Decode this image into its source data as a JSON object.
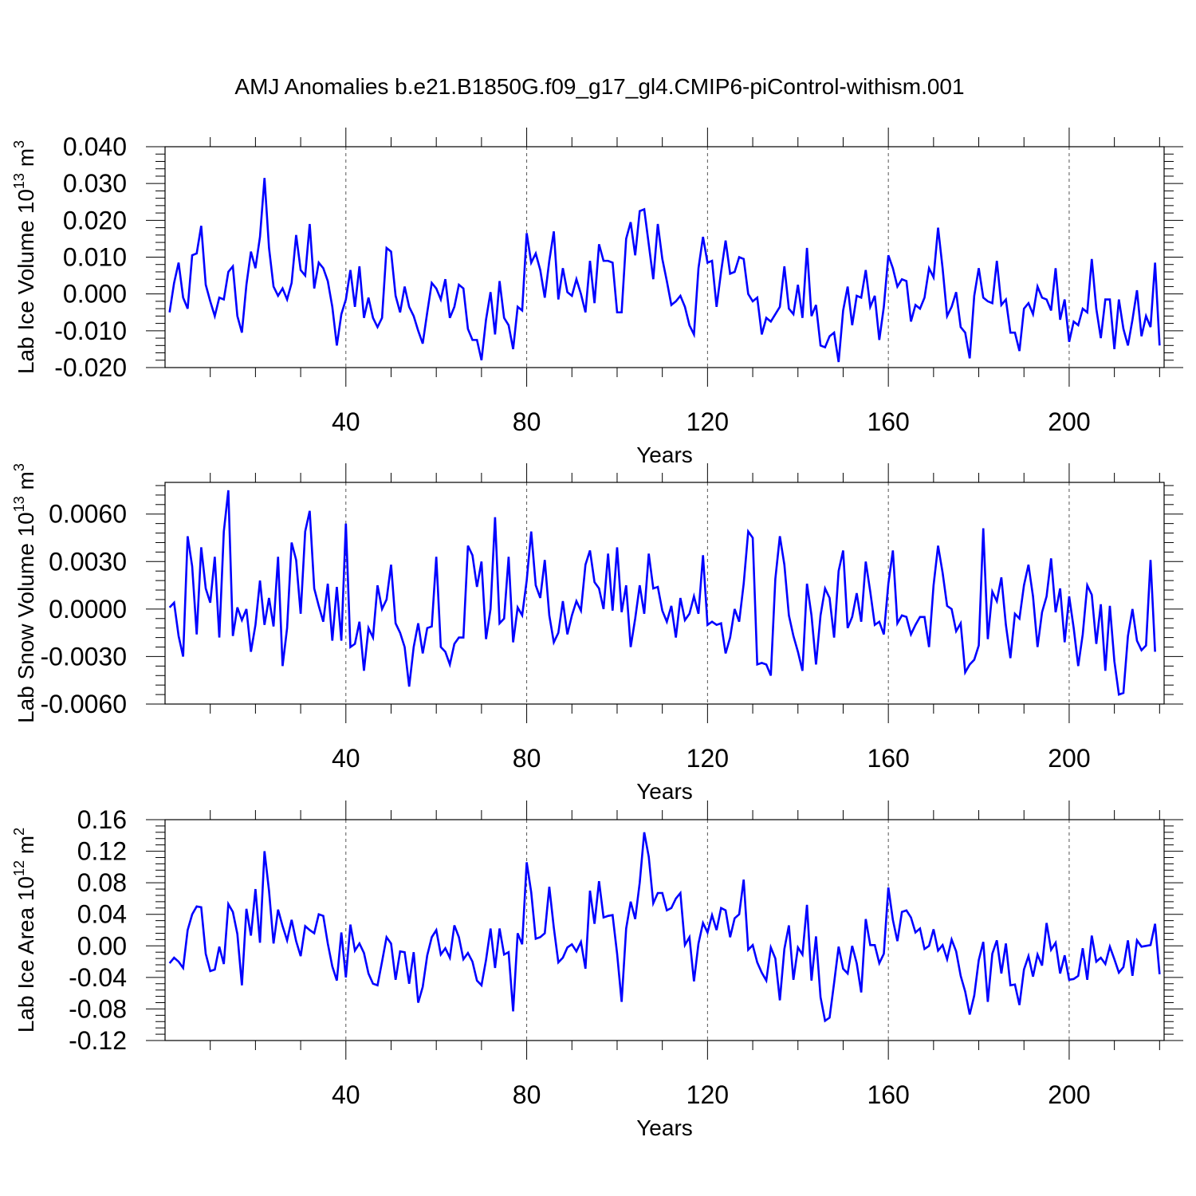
{
  "title": "AMJ Anomalies b.e21.B1850G.f09_g17_gl4.CMIP6-piControl-withism.001",
  "line_color": "#0000ff",
  "chart_data": [
    {
      "type": "line",
      "ylabel_main": "Lab Ice Volume 10",
      "ylabel_exp": "13",
      "ylabel_unit": " m",
      "ylabel_unit_exp": "3",
      "xlabel": "Years",
      "xlim": [
        0,
        221
      ],
      "ylim": [
        -0.02,
        0.04
      ],
      "yticks": [
        -0.02,
        -0.01,
        0.0,
        0.01,
        0.02,
        0.03,
        0.04
      ],
      "ytick_labels": [
        "-0.020",
        "-0.010",
        "0.000",
        "0.010",
        "0.020",
        "0.030",
        "0.040"
      ],
      "xticks": [
        40,
        80,
        120,
        160,
        200
      ],
      "xtick_labels": [
        "40",
        "80",
        "120",
        "160",
        "200"
      ],
      "grid": "dashed vertical at x ticks",
      "series": [
        {
          "name": "Lab Ice Volume",
          "values": [
            -0.005,
            0.003,
            0.0085,
            -0.001,
            -0.004,
            0.0105,
            0.011,
            0.0185,
            0.0025,
            -0.002,
            -0.006,
            -0.001,
            -0.0015,
            0.006,
            0.0075,
            -0.006,
            -0.0105,
            0.0025,
            0.0115,
            0.007,
            0.0155,
            0.0315,
            0.0125,
            0.002,
            -0.0005,
            0.0015,
            -0.0015,
            0.003,
            0.016,
            0.0065,
            0.005,
            0.019,
            0.0015,
            0.0085,
            0.007,
            0.0035,
            -0.0035,
            -0.014,
            -0.0055,
            -0.0015,
            0.0065,
            -0.0035,
            0.0075,
            -0.0065,
            -0.001,
            -0.0065,
            -0.009,
            -0.0065,
            0.0125,
            0.0115,
            -0.0005,
            -0.005,
            0.002,
            -0.0035,
            -0.006,
            -0.01,
            -0.0135,
            -0.005,
            0.003,
            0.0015,
            -0.0015,
            0.004,
            -0.0065,
            -0.0035,
            0.0025,
            0.0015,
            -0.0095,
            -0.0125,
            -0.0125,
            -0.018,
            -0.007,
            0.0005,
            -0.011,
            0.0035,
            -0.0065,
            -0.0085,
            -0.015,
            -0.0035,
            -0.0045,
            0.0165,
            0.0085,
            0.011,
            0.0065,
            -0.001,
            0.009,
            0.017,
            -0.0015,
            0.007,
            0.0005,
            -0.0005,
            0.004,
            0.0,
            -0.005,
            0.009,
            -0.0025,
            0.0135,
            0.009,
            0.009,
            0.0085,
            -0.005,
            -0.005,
            0.015,
            0.0195,
            0.0105,
            0.0225,
            0.023,
            0.0135,
            0.004,
            0.019,
            0.0095,
            0.0035,
            -0.003,
            -0.002,
            -0.0005,
            -0.0035,
            -0.0085,
            -0.011,
            0.007,
            0.0155,
            0.0085,
            0.009,
            -0.0035,
            0.006,
            0.0145,
            0.0055,
            0.006,
            0.01,
            0.0095,
            0.0,
            -0.002,
            -0.001,
            -0.011,
            -0.0065,
            -0.0075,
            -0.0055,
            -0.0035,
            0.0075,
            -0.004,
            -0.0055,
            0.0025,
            -0.0065,
            0.0125,
            -0.006,
            -0.003,
            -0.014,
            -0.0145,
            -0.0115,
            -0.0105,
            -0.0185,
            -0.0045,
            0.002,
            -0.0085,
            -0.0005,
            -0.001,
            0.0065,
            -0.0035,
            -0.0005,
            -0.0125,
            -0.0035,
            0.0105,
            0.007,
            0.002,
            0.004,
            0.0035,
            -0.0075,
            -0.003,
            -0.004,
            -0.001,
            0.007,
            0.0045,
            0.018,
            0.007,
            -0.006,
            -0.0035,
            0.0005,
            -0.009,
            -0.0105,
            -0.0175,
            -0.0005,
            0.007,
            -0.001,
            -0.002,
            -0.0025,
            0.009,
            -0.003,
            -0.0015,
            -0.0105,
            -0.0105,
            -0.0155,
            -0.004,
            -0.0025,
            -0.0055,
            0.002,
            -0.001,
            -0.0015,
            -0.0045,
            0.007,
            -0.007,
            -0.0015,
            -0.013,
            -0.0075,
            -0.0085,
            -0.004,
            -0.005,
            0.0095,
            -0.004,
            -0.012,
            -0.0015,
            -0.0015,
            -0.015,
            -0.0015,
            -0.0095,
            -0.014,
            -0.007,
            0.001,
            -0.0115,
            -0.006,
            -0.009,
            0.0085,
            -0.014
          ]
        }
      ]
    },
    {
      "type": "line",
      "ylabel_main": "Lab Snow Volume 10",
      "ylabel_exp": "13",
      "ylabel_unit": " m",
      "ylabel_unit_exp": "3",
      "xlabel": "Years",
      "xlim": [
        0,
        221
      ],
      "ylim": [
        -0.006,
        0.008
      ],
      "yticks": [
        -0.006,
        -0.003,
        0.0,
        0.003,
        0.006
      ],
      "ytick_labels": [
        "-0.0060",
        "-0.0030",
        "0.0000",
        "0.0030",
        "0.0060"
      ],
      "xticks": [
        40,
        80,
        120,
        160,
        200
      ],
      "xtick_labels": [
        "40",
        "80",
        "120",
        "160",
        "200"
      ],
      "grid": "dashed vertical at x ticks",
      "series": [
        {
          "name": "Lab Snow Volume",
          "values": [
            0.0001,
            0.0004,
            -0.0017,
            -0.003,
            0.0046,
            0.0027,
            -0.0016,
            0.0039,
            0.0013,
            0.0004,
            0.0033,
            -0.0018,
            0.0049,
            0.0075,
            -0.0017,
            0.0001,
            -0.0007,
            0.0,
            -0.0027,
            -0.001,
            0.0018,
            -0.001,
            0.0007,
            -0.0011,
            0.0033,
            -0.0036,
            -0.0012,
            0.0042,
            0.0031,
            -0.0003,
            0.0049,
            0.0062,
            0.0013,
            0.0002,
            -0.0008,
            0.0016,
            -0.002,
            0.0014,
            -0.002,
            0.0054,
            -0.0024,
            -0.0022,
            -0.0008,
            -0.0039,
            -0.0012,
            -0.0018,
            0.0015,
            0.0,
            0.0006,
            0.0028,
            -0.0009,
            -0.0015,
            -0.0024,
            -0.0049,
            -0.0024,
            -0.0009,
            -0.0028,
            -0.0012,
            -0.0011,
            0.0033,
            -0.0024,
            -0.0027,
            -0.0035,
            -0.0022,
            -0.0018,
            -0.0018,
            0.004,
            0.0034,
            0.0014,
            0.003,
            -0.0019,
            0.0,
            0.0058,
            -0.0009,
            -0.0006,
            0.0033,
            -0.0021,
            0.0001,
            -0.0004,
            0.0018,
            0.0049,
            0.0015,
            0.0007,
            0.0031,
            -0.0004,
            -0.0021,
            -0.0015,
            0.0005,
            -0.0016,
            -0.0004,
            0.0005,
            -0.0001,
            0.0028,
            0.0037,
            0.0017,
            0.0013,
            0.0,
            0.0035,
            -0.0001,
            0.0039,
            -0.0002,
            0.0015,
            -0.0024,
            -0.0006,
            0.0015,
            -0.0003,
            0.0035,
            0.0013,
            0.0014,
            -0.0001,
            -0.0008,
            0.0002,
            -0.0018,
            0.0007,
            -0.0007,
            -0.0003,
            0.0008,
            -0.0003,
            0.0034,
            -0.001,
            -0.0008,
            -0.001,
            -0.0009,
            -0.0028,
            -0.0018,
            0.0,
            -0.0008,
            0.0016,
            0.0049,
            0.0045,
            -0.0035,
            -0.0034,
            -0.0035,
            -0.0042,
            0.0019,
            0.0046,
            0.0028,
            -0.0004,
            -0.0017,
            -0.0027,
            -0.0039,
            0.0016,
            -0.0004,
            -0.0035,
            -0.0004,
            0.0013,
            0.0007,
            -0.0018,
            0.0024,
            0.0037,
            -0.0012,
            -0.0005,
            0.001,
            -0.0008,
            0.003,
            0.0011,
            -0.001,
            -0.0008,
            -0.0016,
            0.0016,
            0.0037,
            -0.0009,
            -0.0004,
            -0.0005,
            -0.0016,
            -0.001,
            -0.0005,
            -0.0005,
            -0.0024,
            0.0015,
            0.004,
            0.0023,
            0.0002,
            0.0,
            -0.0014,
            -0.0009,
            -0.004,
            -0.0035,
            -0.0032,
            -0.0023,
            0.0051,
            -0.0019,
            0.0011,
            0.0005,
            0.002,
            -0.001,
            -0.0031,
            -0.0003,
            -0.0006,
            0.0015,
            0.0028,
            0.0008,
            -0.0024,
            -0.0002,
            0.0008,
            0.0032,
            -0.0002,
            0.0013,
            -0.0021,
            0.0008,
            -0.0012,
            -0.0036,
            -0.0016,
            0.0015,
            0.0009,
            -0.0022,
            0.0003,
            -0.0039,
            0.0002,
            -0.0033,
            -0.0054,
            -0.0053,
            -0.0017,
            0.0,
            -0.002,
            -0.0026,
            -0.0023,
            0.0031,
            -0.0027
          ]
        }
      ]
    },
    {
      "type": "line",
      "ylabel_main": "Lab Ice Area 10",
      "ylabel_exp": "12",
      "ylabel_unit": " m",
      "ylabel_unit_exp": "2",
      "xlabel": "Years",
      "xlim": [
        0,
        221
      ],
      "ylim": [
        -0.12,
        0.16
      ],
      "yticks": [
        -0.12,
        -0.08,
        -0.04,
        0.0,
        0.04,
        0.08,
        0.12,
        0.16
      ],
      "ytick_labels": [
        "-0.12",
        "-0.08",
        "-0.04",
        "0.00",
        "0.04",
        "0.08",
        "0.12",
        "0.16"
      ],
      "xticks": [
        40,
        80,
        120,
        160,
        200
      ],
      "xtick_labels": [
        "40",
        "80",
        "120",
        "160",
        "200"
      ],
      "grid": "dashed vertical at x ticks",
      "series": [
        {
          "name": "Lab Ice Area",
          "values": [
            -0.022,
            -0.015,
            -0.02,
            -0.028,
            0.02,
            0.04,
            0.05,
            0.049,
            -0.01,
            -0.032,
            -0.03,
            -0.001,
            -0.023,
            0.053,
            0.043,
            0.015,
            -0.05,
            0.047,
            0.013,
            0.072,
            0.004,
            0.12,
            0.07,
            0.003,
            0.046,
            0.025,
            0.007,
            0.033,
            0.006,
            -0.013,
            0.025,
            0.02,
            0.016,
            0.04,
            0.038,
            0.003,
            -0.026,
            -0.044,
            0.017,
            -0.04,
            0.027,
            -0.006,
            0.003,
            -0.009,
            -0.035,
            -0.048,
            -0.05,
            -0.02,
            0.011,
            0.003,
            -0.043,
            -0.007,
            -0.008,
            -0.048,
            -0.008,
            -0.072,
            -0.052,
            -0.012,
            0.011,
            0.02,
            -0.011,
            -0.003,
            -0.015,
            0.026,
            0.011,
            -0.017,
            -0.009,
            -0.02,
            -0.044,
            -0.05,
            -0.018,
            0.022,
            -0.028,
            0.022,
            -0.011,
            -0.008,
            -0.083,
            0.016,
            0.002,
            0.106,
            0.068,
            0.009,
            0.011,
            0.016,
            0.075,
            0.023,
            -0.021,
            -0.015,
            -0.002,
            0.002,
            -0.007,
            0.005,
            -0.029,
            0.07,
            0.028,
            0.082,
            0.036,
            0.038,
            0.039,
            -0.01,
            -0.071,
            0.022,
            0.056,
            0.034,
            0.08,
            0.144,
            0.113,
            0.054,
            0.067,
            0.067,
            0.045,
            0.048,
            0.06,
            0.067,
            0.001,
            0.011,
            -0.045,
            0.003,
            0.029,
            0.017,
            0.039,
            0.02,
            0.048,
            0.045,
            0.011,
            0.035,
            0.04,
            0.084,
            -0.005,
            0.001,
            -0.021,
            -0.034,
            -0.044,
            -0.002,
            -0.016,
            -0.069,
            -0.004,
            0.026,
            -0.043,
            -0.002,
            -0.011,
            0.052,
            -0.044,
            0.012,
            -0.065,
            -0.095,
            -0.091,
            -0.047,
            -0.001,
            -0.029,
            -0.035,
            0.0,
            -0.022,
            -0.059,
            0.034,
            0.001,
            0.001,
            -0.022,
            -0.01,
            0.074,
            0.033,
            0.006,
            0.043,
            0.045,
            0.036,
            0.017,
            0.022,
            -0.004,
            0.0,
            0.021,
            -0.006,
            0.001,
            -0.017,
            0.008,
            -0.007,
            -0.038,
            -0.058,
            -0.087,
            -0.063,
            -0.018,
            0.005,
            -0.071,
            -0.01,
            0.007,
            -0.035,
            0.003,
            -0.05,
            -0.049,
            -0.075,
            -0.03,
            -0.013,
            -0.039,
            -0.011,
            -0.025,
            0.029,
            -0.005,
            0.004,
            -0.035,
            -0.012,
            -0.043,
            -0.042,
            -0.038,
            -0.003,
            -0.043,
            0.013,
            -0.02,
            -0.015,
            -0.023,
            -0.001,
            -0.017,
            -0.034,
            -0.027,
            0.007,
            -0.038,
            0.007,
            -0.001,
            0.0,
            0.001,
            0.028,
            -0.036
          ]
        }
      ]
    }
  ]
}
